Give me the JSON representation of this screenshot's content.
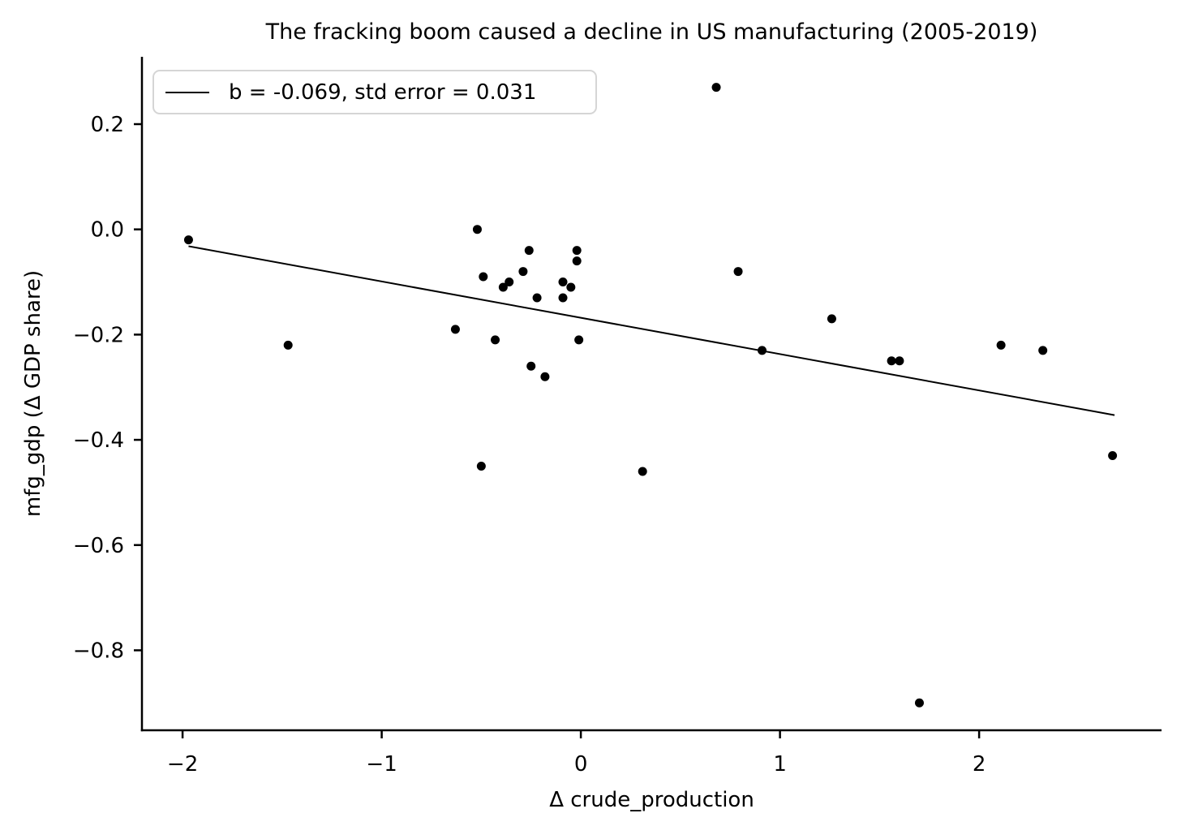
{
  "chart_data": {
    "type": "scatter",
    "title": "The fracking boom caused a decline in US manufacturing (2005-2019)",
    "xlabel": "Δ crude_production",
    "ylabel": "mfg_gdp (Δ GDP share)",
    "legend": {
      "label": "b = -0.069, std error = 0.031",
      "position": "upper left"
    },
    "axes": {
      "xlim": [
        -2.204,
        2.916
      ],
      "ylim": [
        -0.952,
        0.328
      ],
      "grid": false,
      "x_ticks": [
        {
          "value": -2,
          "label": "−2"
        },
        {
          "value": -1,
          "label": "−1"
        },
        {
          "value": 0,
          "label": "0"
        },
        {
          "value": 1,
          "label": "1"
        },
        {
          "value": 2,
          "label": "2"
        }
      ],
      "y_ticks": [
        {
          "value": 0.2,
          "label": "0.2"
        },
        {
          "value": 0.0,
          "label": "0.0"
        },
        {
          "value": -0.2,
          "label": "−0.2"
        },
        {
          "value": -0.4,
          "label": "−0.4"
        },
        {
          "value": -0.6,
          "label": "−0.6"
        },
        {
          "value": -0.8,
          "label": "−0.8"
        }
      ]
    },
    "points": [
      [
        -1.97,
        -0.02
      ],
      [
        -1.47,
        -0.22
      ],
      [
        -0.63,
        -0.19
      ],
      [
        -0.52,
        0.0
      ],
      [
        -0.5,
        -0.45
      ],
      [
        -0.49,
        -0.09
      ],
      [
        -0.43,
        -0.21
      ],
      [
        -0.39,
        -0.11
      ],
      [
        -0.36,
        -0.1
      ],
      [
        -0.29,
        -0.08
      ],
      [
        -0.26,
        -0.04
      ],
      [
        -0.25,
        -0.26
      ],
      [
        -0.22,
        -0.13
      ],
      [
        -0.18,
        -0.28
      ],
      [
        -0.09,
        -0.1
      ],
      [
        -0.09,
        -0.13
      ],
      [
        -0.05,
        -0.11
      ],
      [
        -0.02,
        -0.04
      ],
      [
        -0.02,
        -0.06
      ],
      [
        -0.01,
        -0.21
      ],
      [
        0.31,
        -0.46
      ],
      [
        0.68,
        0.27
      ],
      [
        0.79,
        -0.08
      ],
      [
        0.91,
        -0.23
      ],
      [
        1.26,
        -0.17
      ],
      [
        1.56,
        -0.25
      ],
      [
        1.6,
        -0.25
      ],
      [
        1.7,
        -0.9
      ],
      [
        2.11,
        -0.22
      ],
      [
        2.32,
        -0.23
      ],
      [
        2.67,
        -0.43
      ]
    ],
    "trendline": {
      "x1": -1.97,
      "y1": -0.032,
      "x2": 2.68,
      "y2": -0.353
    },
    "colors": {
      "marker": "#000000",
      "trendline": "#000000",
      "axis": "#000000",
      "text": "#000000",
      "legend_border": "#d5d5d5",
      "background": "#ffffff"
    }
  }
}
